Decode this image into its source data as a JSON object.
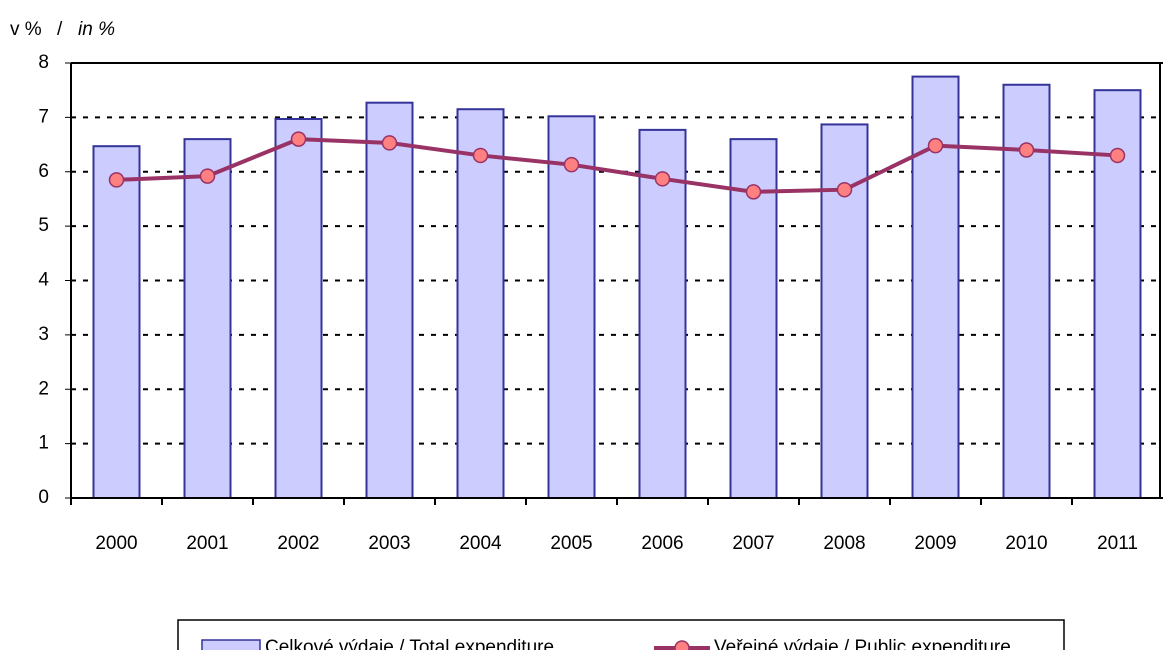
{
  "chart_data": {
    "type": "bar",
    "y_label": [
      "v %",
      "/",
      "in %"
    ],
    "categories": [
      "2000",
      "2001",
      "2002",
      "2003",
      "2004",
      "2005",
      "2006",
      "2007",
      "2008",
      "2009",
      "2010",
      "2011"
    ],
    "series": [
      {
        "name": "Celkové výdaje / Total expenditure",
        "type": "bar",
        "color": "#ccccff",
        "edge": "#333399",
        "values": [
          6.47,
          6.6,
          6.97,
          7.27,
          7.15,
          7.02,
          6.77,
          6.6,
          6.87,
          7.75,
          7.6,
          7.5
        ]
      },
      {
        "name": "Veřejné výdaje / Public expenditure",
        "type": "line",
        "color": "#993366",
        "marker": "#ff8080",
        "values": [
          5.85,
          5.92,
          6.6,
          6.53,
          6.3,
          6.13,
          5.87,
          5.63,
          5.67,
          6.48,
          6.4,
          6.3
        ]
      }
    ],
    "ylim": [
      0,
      8
    ],
    "yticks": [
      0,
      1,
      2,
      3,
      4,
      5,
      6,
      7,
      8
    ],
    "grid": true
  }
}
